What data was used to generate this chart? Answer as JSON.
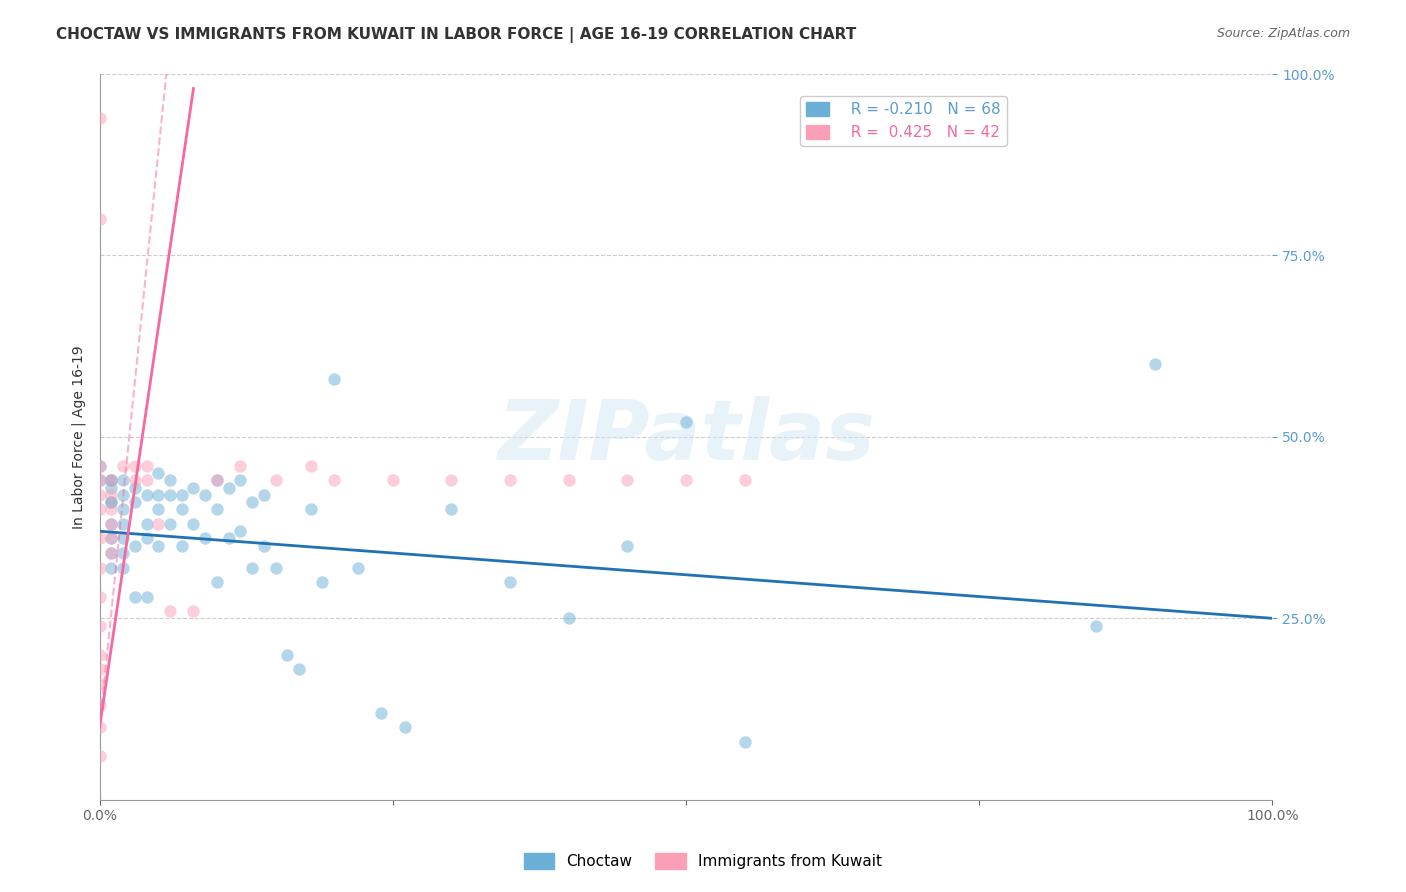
{
  "title": "CHOCTAW VS IMMIGRANTS FROM KUWAIT IN LABOR FORCE | AGE 16-19 CORRELATION CHART",
  "source": "Source: ZipAtlas.com",
  "xlabel_bottom": "",
  "ylabel": "In Labor Force | Age 16-19",
  "x_tick_labels": [
    "0.0%",
    "100.0%"
  ],
  "y_tick_labels": [
    "100.0%",
    "75.0%",
    "50.0%",
    "25.0%"
  ],
  "x_range": [
    0.0,
    1.0
  ],
  "y_range": [
    0.0,
    1.0
  ],
  "legend_blue_label": "Choctaw",
  "legend_pink_label": "Immigrants from Kuwait",
  "legend_blue_R": "R = -0.210",
  "legend_blue_N": "N = 68",
  "legend_pink_R": "R =  0.425",
  "legend_pink_N": "N = 42",
  "blue_color": "#6baed6",
  "pink_color": "#fa9fb5",
  "blue_line_color": "#2171b5",
  "pink_line_color": "#f768a1",
  "watermark": "ZIPatlas",
  "blue_scatter_x": [
    0.0,
    0.0,
    0.01,
    0.01,
    0.01,
    0.01,
    0.01,
    0.01,
    0.01,
    0.01,
    0.01,
    0.02,
    0.02,
    0.02,
    0.02,
    0.02,
    0.02,
    0.02,
    0.03,
    0.03,
    0.03,
    0.03,
    0.04,
    0.04,
    0.04,
    0.04,
    0.05,
    0.05,
    0.05,
    0.05,
    0.06,
    0.06,
    0.06,
    0.07,
    0.07,
    0.07,
    0.08,
    0.08,
    0.09,
    0.09,
    0.1,
    0.1,
    0.1,
    0.11,
    0.11,
    0.12,
    0.12,
    0.13,
    0.13,
    0.14,
    0.14,
    0.15,
    0.16,
    0.17,
    0.18,
    0.19,
    0.2,
    0.22,
    0.24,
    0.26,
    0.3,
    0.35,
    0.4,
    0.45,
    0.5,
    0.55,
    0.85,
    0.9
  ],
  "blue_scatter_y": [
    0.46,
    0.44,
    0.44,
    0.41,
    0.38,
    0.36,
    0.34,
    0.32,
    0.44,
    0.43,
    0.41,
    0.42,
    0.4,
    0.38,
    0.36,
    0.34,
    0.32,
    0.44,
    0.43,
    0.41,
    0.35,
    0.28,
    0.42,
    0.38,
    0.36,
    0.28,
    0.45,
    0.42,
    0.4,
    0.35,
    0.44,
    0.42,
    0.38,
    0.42,
    0.4,
    0.35,
    0.43,
    0.38,
    0.42,
    0.36,
    0.44,
    0.4,
    0.3,
    0.43,
    0.36,
    0.44,
    0.37,
    0.41,
    0.32,
    0.42,
    0.35,
    0.32,
    0.2,
    0.18,
    0.4,
    0.3,
    0.58,
    0.32,
    0.12,
    0.1,
    0.4,
    0.3,
    0.25,
    0.35,
    0.52,
    0.08,
    0.24,
    0.6
  ],
  "pink_scatter_x": [
    0.0,
    0.0,
    0.0,
    0.0,
    0.0,
    0.0,
    0.0,
    0.0,
    0.0,
    0.0,
    0.0,
    0.0,
    0.0,
    0.0,
    0.0,
    0.0,
    0.01,
    0.01,
    0.01,
    0.01,
    0.01,
    0.01,
    0.02,
    0.03,
    0.03,
    0.04,
    0.04,
    0.05,
    0.06,
    0.08,
    0.1,
    0.12,
    0.15,
    0.18,
    0.2,
    0.25,
    0.3,
    0.35,
    0.4,
    0.45,
    0.5,
    0.55
  ],
  "pink_scatter_y": [
    0.94,
    0.8,
    0.46,
    0.44,
    0.42,
    0.4,
    0.36,
    0.32,
    0.28,
    0.24,
    0.2,
    0.18,
    0.16,
    0.13,
    0.1,
    0.06,
    0.44,
    0.42,
    0.4,
    0.38,
    0.36,
    0.34,
    0.46,
    0.46,
    0.44,
    0.44,
    0.46,
    0.38,
    0.26,
    0.26,
    0.44,
    0.46,
    0.44,
    0.46,
    0.44,
    0.44,
    0.44,
    0.44,
    0.44,
    0.44,
    0.44,
    0.44
  ],
  "blue_trendline_x": [
    0.0,
    1.0
  ],
  "blue_trendline_y": [
    0.37,
    0.25
  ],
  "pink_trendline_x": [
    0.0,
    0.08
  ],
  "pink_trendline_y": [
    0.1,
    0.98
  ],
  "grid_color": "#cccccc",
  "background_color": "#ffffff",
  "title_fontsize": 11,
  "axis_label_fontsize": 10,
  "tick_fontsize": 10,
  "legend_fontsize": 11,
  "scatter_size": 80,
  "scatter_alpha": 0.5,
  "watermark_color": "#d0e8f5",
  "watermark_fontsize": 60,
  "watermark_alpha": 0.5
}
